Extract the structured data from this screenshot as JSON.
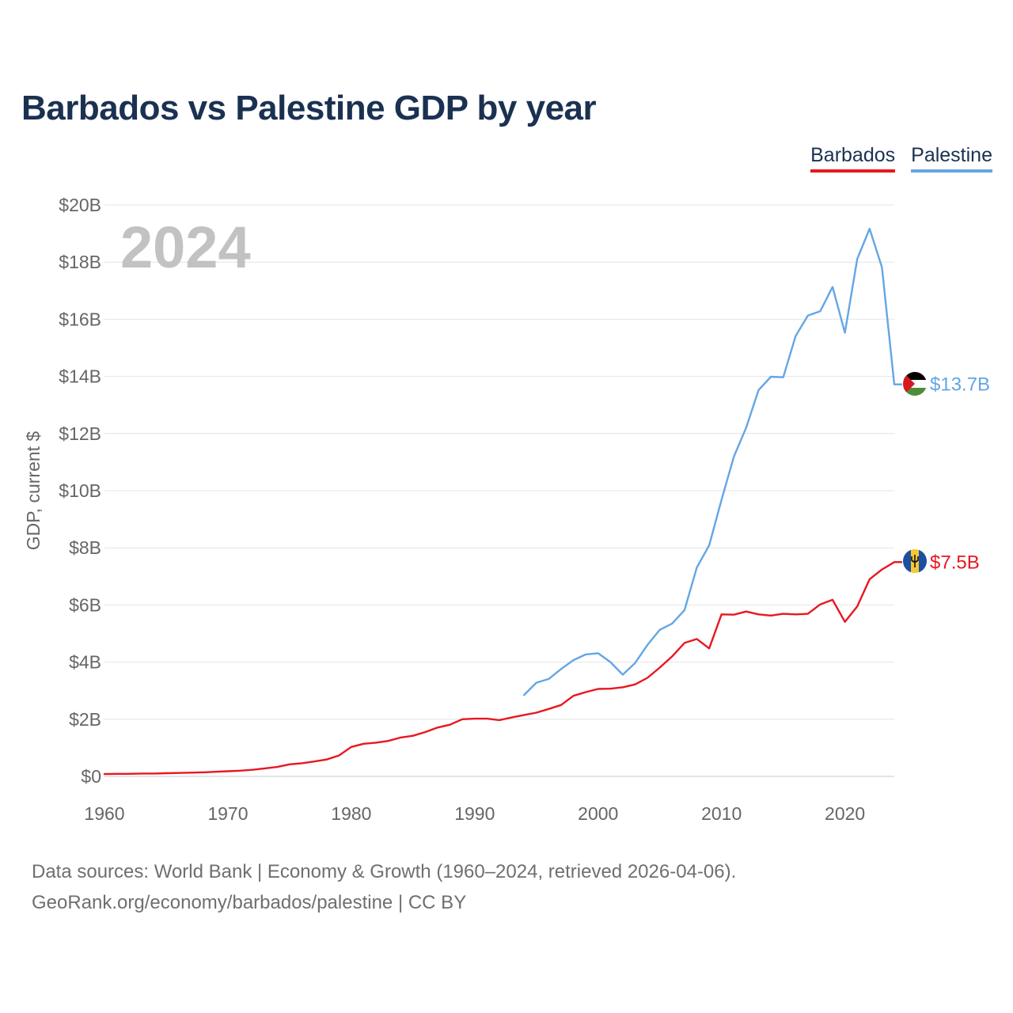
{
  "chart_data": {
    "type": "line",
    "title": "Barbados vs Palestine GDP by year",
    "xlabel": "",
    "ylabel": "GDP, current $",
    "xlim": [
      1960,
      2024
    ],
    "ylim": [
      0,
      20
    ],
    "year_label": "2024",
    "x_ticks": [
      1960,
      1970,
      1980,
      1990,
      2000,
      2010,
      2020
    ],
    "y_ticks": [
      {
        "value": 0,
        "label": "$0"
      },
      {
        "value": 2,
        "label": "$2B"
      },
      {
        "value": 4,
        "label": "$4B"
      },
      {
        "value": 6,
        "label": "$6B"
      },
      {
        "value": 8,
        "label": "$8B"
      },
      {
        "value": 10,
        "label": "$10B"
      },
      {
        "value": 12,
        "label": "$12B"
      },
      {
        "value": 14,
        "label": "$14B"
      },
      {
        "value": 16,
        "label": "$16B"
      },
      {
        "value": 18,
        "label": "$18B"
      },
      {
        "value": 20,
        "label": "$20B"
      }
    ],
    "series": [
      {
        "name": "Barbados",
        "color": "#e8171f",
        "flag": "barbados-flag-icon",
        "end_label": "$7.5B",
        "x": [
          1960,
          1961,
          1962,
          1963,
          1964,
          1965,
          1966,
          1967,
          1968,
          1969,
          1970,
          1971,
          1972,
          1973,
          1974,
          1975,
          1976,
          1977,
          1978,
          1979,
          1980,
          1981,
          1982,
          1983,
          1984,
          1985,
          1986,
          1987,
          1988,
          1989,
          1990,
          1991,
          1992,
          1993,
          1994,
          1995,
          1996,
          1997,
          1998,
          1999,
          2000,
          2001,
          2002,
          2003,
          2004,
          2005,
          2006,
          2007,
          2008,
          2009,
          2010,
          2011,
          2012,
          2013,
          2014,
          2015,
          2016,
          2017,
          2018,
          2019,
          2020,
          2021,
          2022,
          2023,
          2024
        ],
        "values": [
          0.08,
          0.09,
          0.09,
          0.1,
          0.1,
          0.11,
          0.12,
          0.13,
          0.14,
          0.16,
          0.18,
          0.2,
          0.23,
          0.28,
          0.33,
          0.42,
          0.46,
          0.52,
          0.59,
          0.73,
          1.03,
          1.14,
          1.18,
          1.24,
          1.36,
          1.42,
          1.55,
          1.71,
          1.81,
          2.0,
          2.02,
          2.02,
          1.97,
          2.06,
          2.15,
          2.23,
          2.36,
          2.5,
          2.82,
          2.95,
          3.06,
          3.07,
          3.12,
          3.22,
          3.45,
          3.81,
          4.2,
          4.67,
          4.81,
          4.48,
          5.67,
          5.66,
          5.77,
          5.67,
          5.63,
          5.69,
          5.67,
          5.69,
          6.02,
          6.18,
          5.41,
          5.95,
          6.9,
          7.24,
          7.5
        ]
      },
      {
        "name": "Palestine",
        "color": "#64a6e4",
        "flag": "palestine-flag-icon",
        "end_label": "$13.7B",
        "x": [
          1994,
          1995,
          1996,
          1997,
          1998,
          1999,
          2000,
          2001,
          2002,
          2003,
          2004,
          2005,
          2006,
          2007,
          2008,
          2009,
          2010,
          2011,
          2012,
          2013,
          2014,
          2015,
          2016,
          2017,
          2018,
          2019,
          2020,
          2021,
          2022,
          2023,
          2024
        ],
        "values": [
          2.85,
          3.28,
          3.41,
          3.76,
          4.07,
          4.27,
          4.31,
          4.0,
          3.56,
          3.97,
          4.6,
          5.13,
          5.35,
          5.82,
          7.31,
          8.09,
          9.68,
          11.19,
          12.21,
          13.52,
          13.99,
          13.97,
          15.41,
          16.13,
          16.28,
          17.13,
          15.53,
          18.11,
          19.17,
          17.82,
          13.72
        ]
      }
    ]
  },
  "legend": {
    "barbados": "Barbados",
    "palestine": "Palestine"
  },
  "footer": {
    "line1": "Data sources: World Bank | Economy & Growth (1960–2024, retrieved 2026-04-06).",
    "line2": "GeoRank.org/economy/barbados/palestine | CC BY"
  }
}
